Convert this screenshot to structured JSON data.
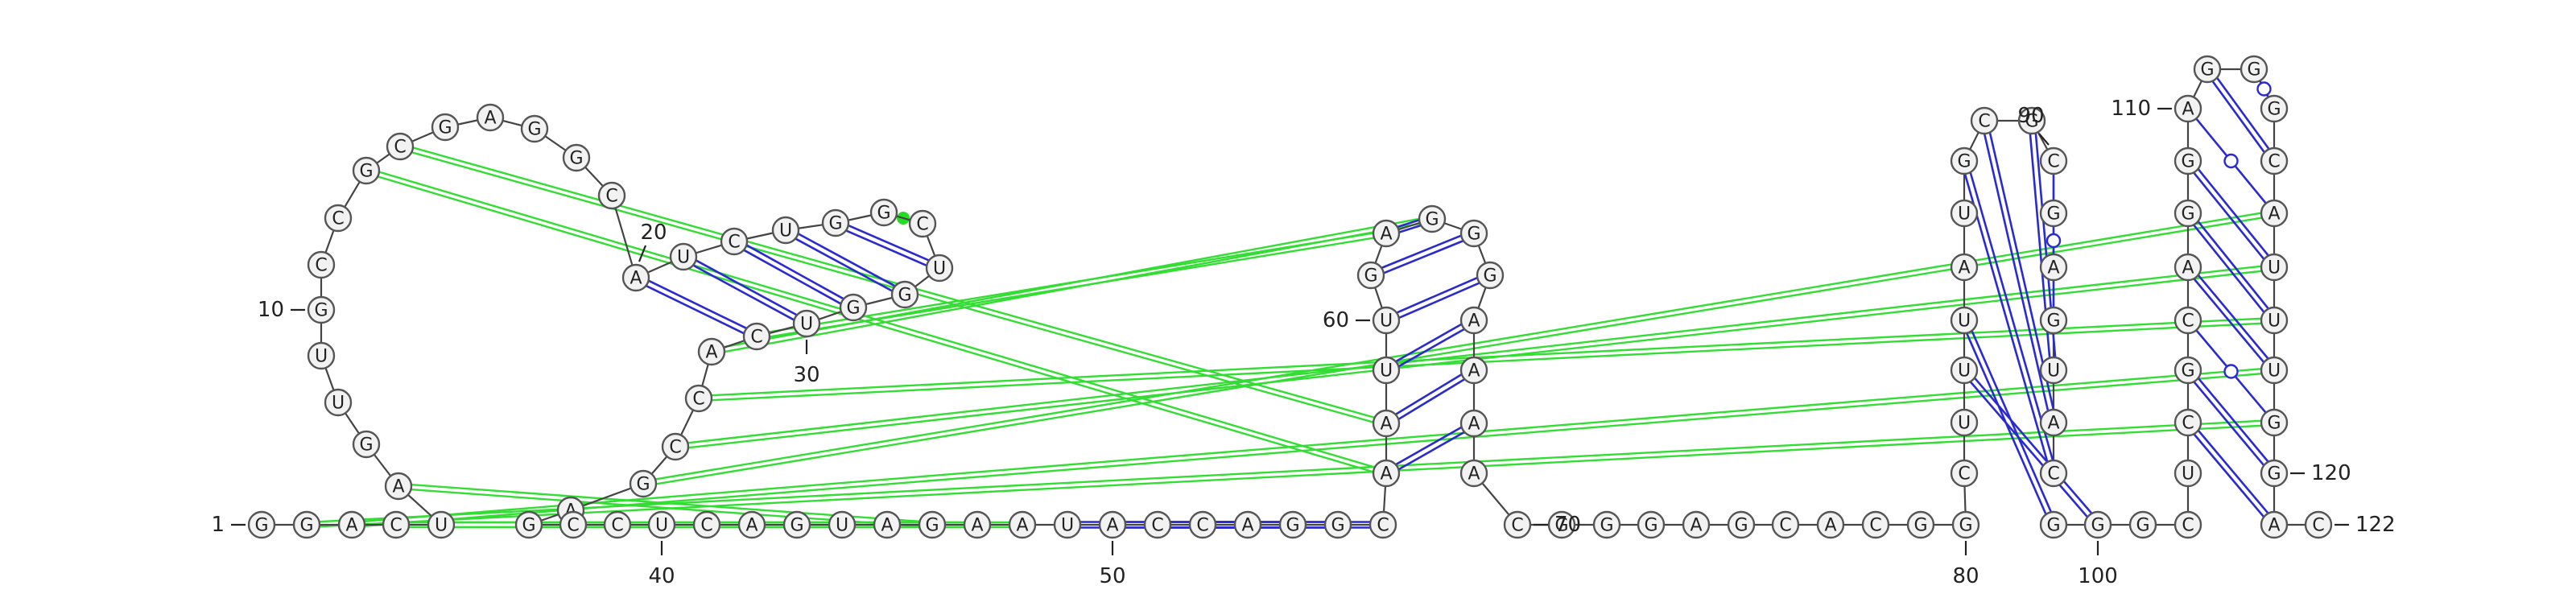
{
  "diagram": {
    "sequence": "GGACUAGUUGCCGCGAGGCAUCUGGCUGGUCACCGAGCCUCAGUAGAAUACCAGGCAAUUGAGGGAAAACGGGAGCACGGCUUUAUGCGCGAGUACUUGGGCUCGCAGGAGGGCAUUUGGAC",
    "index_labels": [
      {
        "text": "1",
        "nt": 1,
        "side": "left"
      },
      {
        "text": "10",
        "nt": 10,
        "side": "left"
      },
      {
        "text": "20",
        "nt": 20,
        "side": "up"
      },
      {
        "text": "30",
        "nt": 30,
        "side": "down"
      },
      {
        "text": "40",
        "nt": 40,
        "side": "down"
      },
      {
        "text": "50",
        "nt": 50,
        "side": "down"
      },
      {
        "text": "60",
        "nt": 60,
        "side": "left"
      },
      {
        "text": "70",
        "nt": 70,
        "side": "right"
      },
      {
        "text": "80",
        "nt": 80,
        "side": "down"
      },
      {
        "text": "90",
        "nt": 90,
        "side": "upleft"
      },
      {
        "text": "100",
        "nt": 100,
        "side": "down"
      },
      {
        "text": "110",
        "nt": 110,
        "side": "left"
      },
      {
        "text": "120",
        "nt": 120,
        "side": "right"
      },
      {
        "text": "122",
        "nt": 122,
        "side": "right"
      }
    ],
    "pairs": [
      {
        "i": 58,
        "j": 67,
        "type": "wc"
      },
      {
        "i": 59,
        "j": 66,
        "type": "wc"
      },
      {
        "i": 60,
        "j": 65,
        "type": "wc"
      },
      {
        "i": 61,
        "j": 64,
        "type": "wc"
      },
      {
        "i": 62,
        "j": 63,
        "type": "wc"
      },
      {
        "i": 49,
        "j": 53,
        "type": "wc"
      },
      {
        "i": 50,
        "j": 54,
        "type": "wc"
      },
      {
        "i": 51,
        "j": 55,
        "type": "wc"
      },
      {
        "i": 52,
        "j": 56,
        "type": "wc"
      },
      {
        "i": 57,
        "j": 68,
        "type": "wc"
      },
      {
        "i": 85,
        "j": 98,
        "type": "wc"
      },
      {
        "i": 86,
        "j": 97,
        "type": "wc"
      },
      {
        "i": 87,
        "j": 96,
        "type": "wc"
      },
      {
        "i": 88,
        "j": 95,
        "type": "wc"
      },
      {
        "i": 89,
        "j": 94,
        "type": "wc"
      },
      {
        "i": 90,
        "j": 93,
        "type": "gu"
      },
      {
        "i": 84,
        "j": 99,
        "type": "wc"
      },
      {
        "i": 83,
        "j": 100,
        "type": "wc"
      },
      {
        "i": 104,
        "j": 121,
        "type": "wc"
      },
      {
        "i": 105,
        "j": 120,
        "type": "wc"
      },
      {
        "i": 106,
        "j": 119,
        "type": "gu"
      },
      {
        "i": 107,
        "j": 118,
        "type": "wc"
      },
      {
        "i": 108,
        "j": 117,
        "type": "wc"
      },
      {
        "i": 109,
        "j": 116,
        "type": "wc"
      },
      {
        "i": 110,
        "j": 115,
        "type": "gu"
      },
      {
        "i": 111,
        "j": 114,
        "type": "wc"
      },
      {
        "i": 112,
        "j": 113,
        "type": "gu"
      },
      {
        "i": 20,
        "j": 31,
        "type": "wc"
      },
      {
        "i": 21,
        "j": 30,
        "type": "wc"
      },
      {
        "i": 22,
        "j": 29,
        "type": "wc"
      },
      {
        "i": 23,
        "j": 28,
        "type": "wc"
      },
      {
        "i": 24,
        "j": 27,
        "type": "wc"
      }
    ],
    "pseudoknots": [
      {
        "i": 13,
        "j": 57
      },
      {
        "i": 14,
        "j": 58
      },
      {
        "i": 4,
        "j": 48
      },
      {
        "i": 5,
        "j": 47
      },
      {
        "i": 6,
        "j": 46
      },
      {
        "i": 33,
        "j": 117
      },
      {
        "i": 34,
        "j": 116
      },
      {
        "i": 35,
        "j": 115
      },
      {
        "i": 3,
        "j": 118
      },
      {
        "i": 2,
        "j": 119
      },
      {
        "i": 31,
        "j": 62
      },
      {
        "i": 32,
        "j": 63
      },
      {
        "i": 25,
        "j": 26
      }
    ],
    "colors": {
      "stem_pair": "#2a2ad0",
      "pseudoknot": "#33dd33",
      "backbone": "#444444",
      "node_fill": "#f2f2f2"
    }
  }
}
